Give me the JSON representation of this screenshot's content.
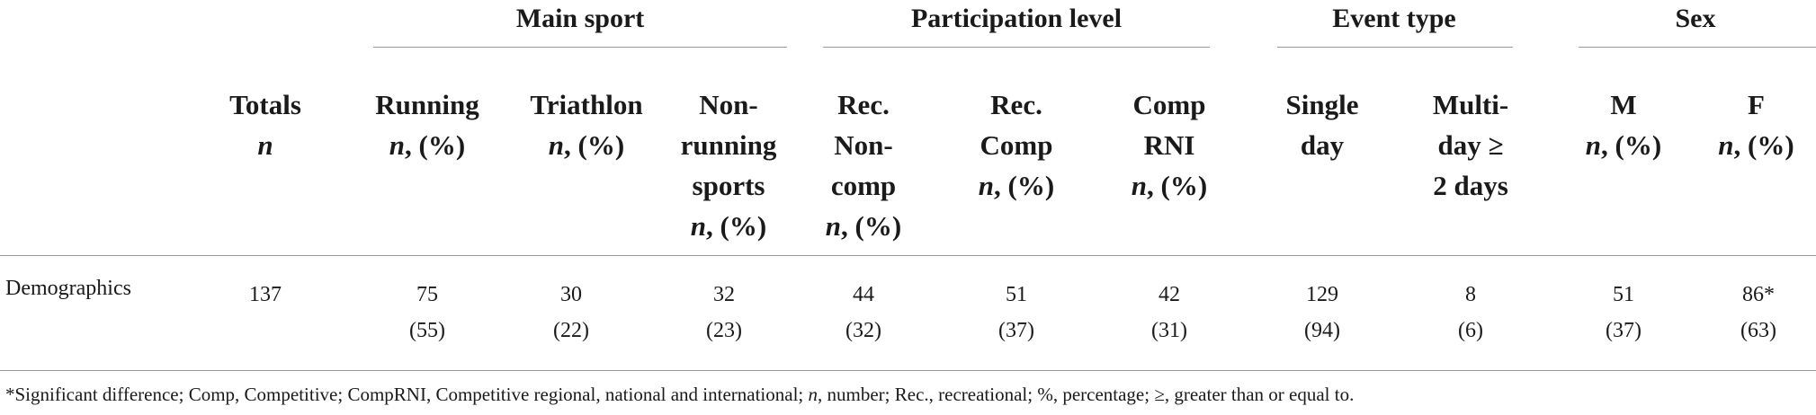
{
  "group_headers": {
    "main_sport": "Main sport",
    "participation_level": "Participation level",
    "event_type": "Event type",
    "sex": "Sex"
  },
  "columns": [
    {
      "id": "totals",
      "lines": [
        "Totals"
      ],
      "sub": "n"
    },
    {
      "id": "running",
      "lines": [
        "Running"
      ],
      "sub": "n, (%)"
    },
    {
      "id": "triathlon",
      "lines": [
        "Triathlon"
      ],
      "sub": "n, (%)"
    },
    {
      "id": "nonrunning",
      "lines": [
        "Non-",
        "running",
        "sports"
      ],
      "sub": "n, (%)"
    },
    {
      "id": "rec_noncomp",
      "lines": [
        "Rec.",
        "Non-",
        "comp"
      ],
      "sub": "n, (%)"
    },
    {
      "id": "rec_comp",
      "lines": [
        "Rec.",
        "Comp"
      ],
      "sub": "n, (%)"
    },
    {
      "id": "comp_rni",
      "lines": [
        "Comp",
        "RNI"
      ],
      "sub": "n, (%)"
    },
    {
      "id": "single_day",
      "lines": [
        "Single",
        "day"
      ],
      "sub": ""
    },
    {
      "id": "multi_day",
      "lines": [
        "Multi-",
        "day ≥",
        "2 days"
      ],
      "sub": ""
    },
    {
      "id": "male",
      "lines": [
        "M"
      ],
      "sub": "n, (%)"
    },
    {
      "id": "female",
      "lines": [
        "F"
      ],
      "sub": "n, (%)"
    }
  ],
  "rows": [
    {
      "label": "Demographics",
      "values": [
        {
          "n": "137",
          "pct": ""
        },
        {
          "n": "75",
          "pct": "(55)"
        },
        {
          "n": "30",
          "pct": "(22)"
        },
        {
          "n": "32",
          "pct": "(23)"
        },
        {
          "n": "44",
          "pct": "(32)"
        },
        {
          "n": "51",
          "pct": "(37)"
        },
        {
          "n": "42",
          "pct": "(31)"
        },
        {
          "n": "129",
          "pct": "(94)"
        },
        {
          "n": "8",
          "pct": "(6)"
        },
        {
          "n": "51",
          "pct": "(37)"
        },
        {
          "n": "86*",
          "pct": "(63)"
        }
      ]
    }
  ],
  "footnote": "*Significant difference; Comp, Competitive; CompRNI, Competitive regional, national and international; n, number; Rec., recreational; %, percentage; ≥, greater than or equal to."
}
